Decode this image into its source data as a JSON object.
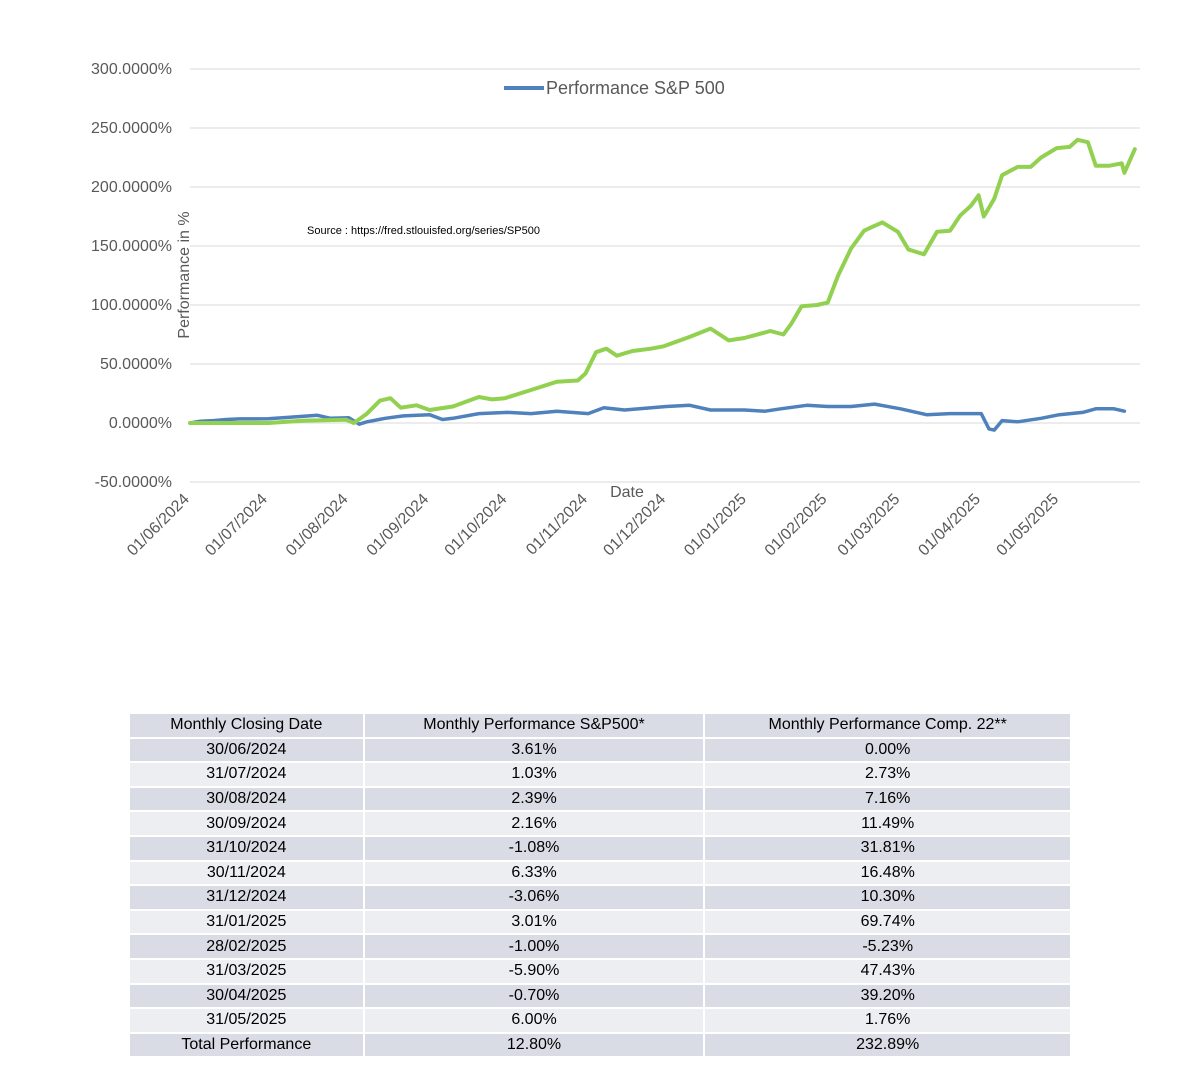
{
  "chart_data": {
    "type": "line",
    "legend": {
      "entries": [
        "Performance S&P 500"
      ],
      "placement": "top-center"
    },
    "source_note": "Source : https://fred.stlouisfed.org/series/SP500",
    "xlabel": "Date",
    "ylabel": "Performance in %",
    "ylim": [
      -50,
      300
    ],
    "y_ticks": [
      "300.0000%",
      "250.0000%",
      "200.0000%",
      "150.0000%",
      "100.0000%",
      "50.0000%",
      "0.0000%",
      "-50.0000%"
    ],
    "y_tick_values": [
      300,
      250,
      200,
      150,
      100,
      50,
      0,
      -50
    ],
    "x_ticks": [
      "01/06/2024",
      "01/07/2024",
      "01/08/2024",
      "01/09/2024",
      "01/10/2024",
      "01/11/2024",
      "01/12/2024",
      "01/01/2025",
      "01/02/2025",
      "01/03/2025",
      "01/04/2025",
      "01/05/2025"
    ],
    "grid": "horizontal",
    "series": [
      {
        "name": "Performance S&P 500",
        "color": "#4f81bd",
        "points": [
          [
            "01/06/2024",
            0
          ],
          [
            "05/06/2024",
            1.5
          ],
          [
            "10/06/2024",
            2
          ],
          [
            "15/06/2024",
            3
          ],
          [
            "20/06/2024",
            3.5
          ],
          [
            "01/07/2024",
            3.6
          ],
          [
            "10/07/2024",
            5
          ],
          [
            "20/07/2024",
            6.5
          ],
          [
            "25/07/2024",
            4
          ],
          [
            "01/08/2024",
            4.5
          ],
          [
            "05/08/2024",
            -1
          ],
          [
            "08/08/2024",
            1
          ],
          [
            "15/08/2024",
            4
          ],
          [
            "22/08/2024",
            6
          ],
          [
            "01/09/2024",
            7
          ],
          [
            "06/09/2024",
            3
          ],
          [
            "10/09/2024",
            4
          ],
          [
            "20/09/2024",
            8
          ],
          [
            "01/10/2024",
            9
          ],
          [
            "10/10/2024",
            8
          ],
          [
            "20/10/2024",
            10
          ],
          [
            "01/11/2024",
            8
          ],
          [
            "07/11/2024",
            13
          ],
          [
            "15/11/2024",
            11
          ],
          [
            "01/12/2024",
            14
          ],
          [
            "10/12/2024",
            15
          ],
          [
            "18/12/2024",
            11
          ],
          [
            "31/12/2024",
            11
          ],
          [
            "08/01/2025",
            10
          ],
          [
            "14/01/2025",
            12
          ],
          [
            "24/01/2025",
            15
          ],
          [
            "01/02/2025",
            14
          ],
          [
            "10/02/2025",
            14
          ],
          [
            "19/02/2025",
            16
          ],
          [
            "01/03/2025",
            12
          ],
          [
            "11/03/2025",
            7
          ],
          [
            "20/03/2025",
            8
          ],
          [
            "01/04/2025",
            8
          ],
          [
            "04/04/2025",
            -5
          ],
          [
            "06/04/2025",
            -6
          ],
          [
            "09/04/2025",
            2
          ],
          [
            "15/04/2025",
            1
          ],
          [
            "24/04/2025",
            4
          ],
          [
            "01/05/2025",
            7
          ],
          [
            "10/05/2025",
            9
          ],
          [
            "15/05/2025",
            12
          ],
          [
            "22/05/2025",
            12
          ],
          [
            "26/05/2025",
            10
          ]
        ]
      },
      {
        "name": "",
        "color": "#92d050",
        "points": [
          [
            "01/06/2024",
            0
          ],
          [
            "01/07/2024",
            0
          ],
          [
            "15/07/2024",
            2
          ],
          [
            "31/07/2024",
            2.7
          ],
          [
            "03/08/2024",
            0
          ],
          [
            "08/08/2024",
            8
          ],
          [
            "13/08/2024",
            19
          ],
          [
            "17/08/2024",
            21
          ],
          [
            "21/08/2024",
            13
          ],
          [
            "27/08/2024",
            15
          ],
          [
            "01/09/2024",
            11
          ],
          [
            "10/09/2024",
            14
          ],
          [
            "20/09/2024",
            22
          ],
          [
            "25/09/2024",
            20
          ],
          [
            "30/09/2024",
            21
          ],
          [
            "10/10/2024",
            28
          ],
          [
            "20/10/2024",
            35
          ],
          [
            "28/10/2024",
            36
          ],
          [
            "31/10/2024",
            42
          ],
          [
            "04/11/2024",
            60
          ],
          [
            "08/11/2024",
            63
          ],
          [
            "12/11/2024",
            57
          ],
          [
            "18/11/2024",
            61
          ],
          [
            "25/11/2024",
            63
          ],
          [
            "30/11/2024",
            65
          ],
          [
            "10/12/2024",
            73
          ],
          [
            "18/12/2024",
            80
          ],
          [
            "25/12/2024",
            70
          ],
          [
            "31/12/2024",
            72
          ],
          [
            "10/01/2025",
            78
          ],
          [
            "15/01/2025",
            75
          ],
          [
            "18/01/2025",
            84
          ],
          [
            "22/01/2025",
            99
          ],
          [
            "28/01/2025",
            100
          ],
          [
            "01/02/2025",
            102
          ],
          [
            "05/02/2025",
            125
          ],
          [
            "10/02/2025",
            148
          ],
          [
            "15/02/2025",
            163
          ],
          [
            "18/02/2025",
            166
          ],
          [
            "22/02/2025",
            170
          ],
          [
            "28/02/2025",
            162
          ],
          [
            "04/03/2025",
            147
          ],
          [
            "10/03/2025",
            143
          ],
          [
            "15/03/2025",
            162
          ],
          [
            "20/03/2025",
            163
          ],
          [
            "24/03/2025",
            176
          ],
          [
            "28/03/2025",
            184
          ],
          [
            "31/03/2025",
            193
          ],
          [
            "02/04/2025",
            175
          ],
          [
            "06/04/2025",
            190
          ],
          [
            "09/04/2025",
            210
          ],
          [
            "15/04/2025",
            217
          ],
          [
            "20/04/2025",
            217
          ],
          [
            "24/04/2025",
            225
          ],
          [
            "30/04/2025",
            233
          ],
          [
            "05/05/2025",
            234
          ],
          [
            "08/05/2025",
            240
          ],
          [
            "12/05/2025",
            238
          ],
          [
            "15/05/2025",
            218
          ],
          [
            "20/05/2025",
            218
          ],
          [
            "25/05/2025",
            220
          ],
          [
            "26/05/2025",
            212
          ],
          [
            "30/05/2025",
            232
          ]
        ]
      }
    ]
  },
  "table": {
    "headers": [
      "Monthly Closing Date",
      "Monthly Performance S&P500*",
      "Monthly Performance Comp. 22**"
    ],
    "rows": [
      [
        "30/06/2024",
        "3.61%",
        "0.00%"
      ],
      [
        "31/07/2024",
        "1.03%",
        "2.73%"
      ],
      [
        "30/08/2024",
        "2.39%",
        "7.16%"
      ],
      [
        "30/09/2024",
        "2.16%",
        "11.49%"
      ],
      [
        "31/10/2024",
        "-1.08%",
        "31.81%"
      ],
      [
        "30/11/2024",
        "6.33%",
        "16.48%"
      ],
      [
        "31/12/2024",
        "-3.06%",
        "10.30%"
      ],
      [
        "31/01/2025",
        "3.01%",
        "69.74%"
      ],
      [
        "28/02/2025",
        "-1.00%",
        "-5.23%"
      ],
      [
        "31/03/2025",
        "-5.90%",
        "47.43%"
      ],
      [
        "30/04/2025",
        "-0.70%",
        "39.20%"
      ],
      [
        "31/05/2025",
        "6.00%",
        "1.76%"
      ]
    ],
    "total": [
      "Total Performance",
      "12.80%",
      "232.89%"
    ]
  }
}
